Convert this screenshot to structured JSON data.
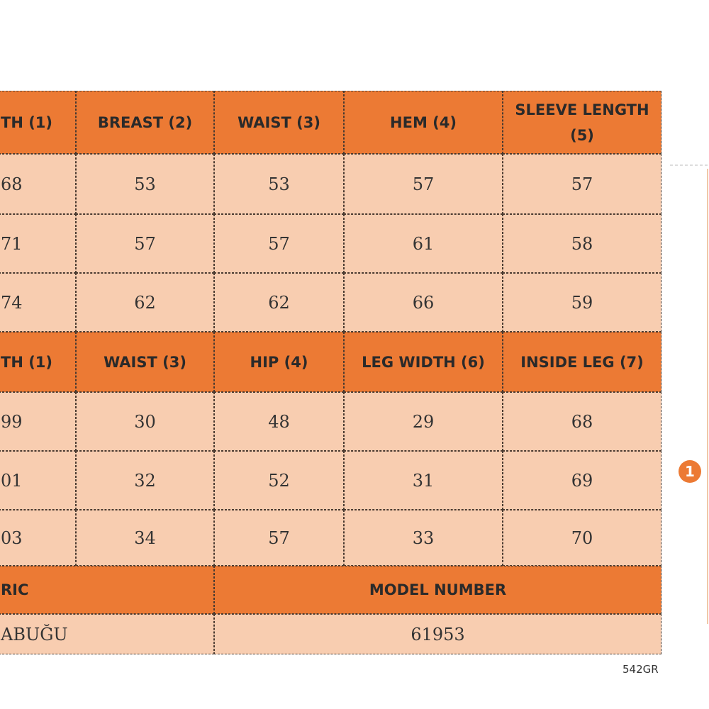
{
  "top_table": {
    "header": [
      "TH (1)",
      "BREAST (2)",
      "WAIST (3)",
      "HEM (4)",
      "SLEEVE LENGTH (5)"
    ],
    "rows": [
      [
        "68",
        "53",
        "53",
        "57",
        "57"
      ],
      [
        "71",
        "57",
        "57",
        "61",
        "58"
      ],
      [
        "74",
        "62",
        "62",
        "66",
        "59"
      ]
    ]
  },
  "bottom_table": {
    "header": [
      "TH (1)",
      "WAIST (3)",
      "HIP (4)",
      "LEG WIDTH (6)",
      "INSIDE LEG (7)"
    ],
    "rows": [
      [
        "99",
        "30",
        "48",
        "29",
        "68"
      ],
      [
        "01",
        "32",
        "52",
        "31",
        "69"
      ],
      [
        "03",
        "34",
        "57",
        "33",
        "70"
      ]
    ]
  },
  "info_table": {
    "header": [
      "RIC",
      "MODEL NUMBER"
    ],
    "rows": [
      [
        "ABUĞU",
        "61953"
      ]
    ]
  },
  "code": "542GR",
  "marker": "1"
}
